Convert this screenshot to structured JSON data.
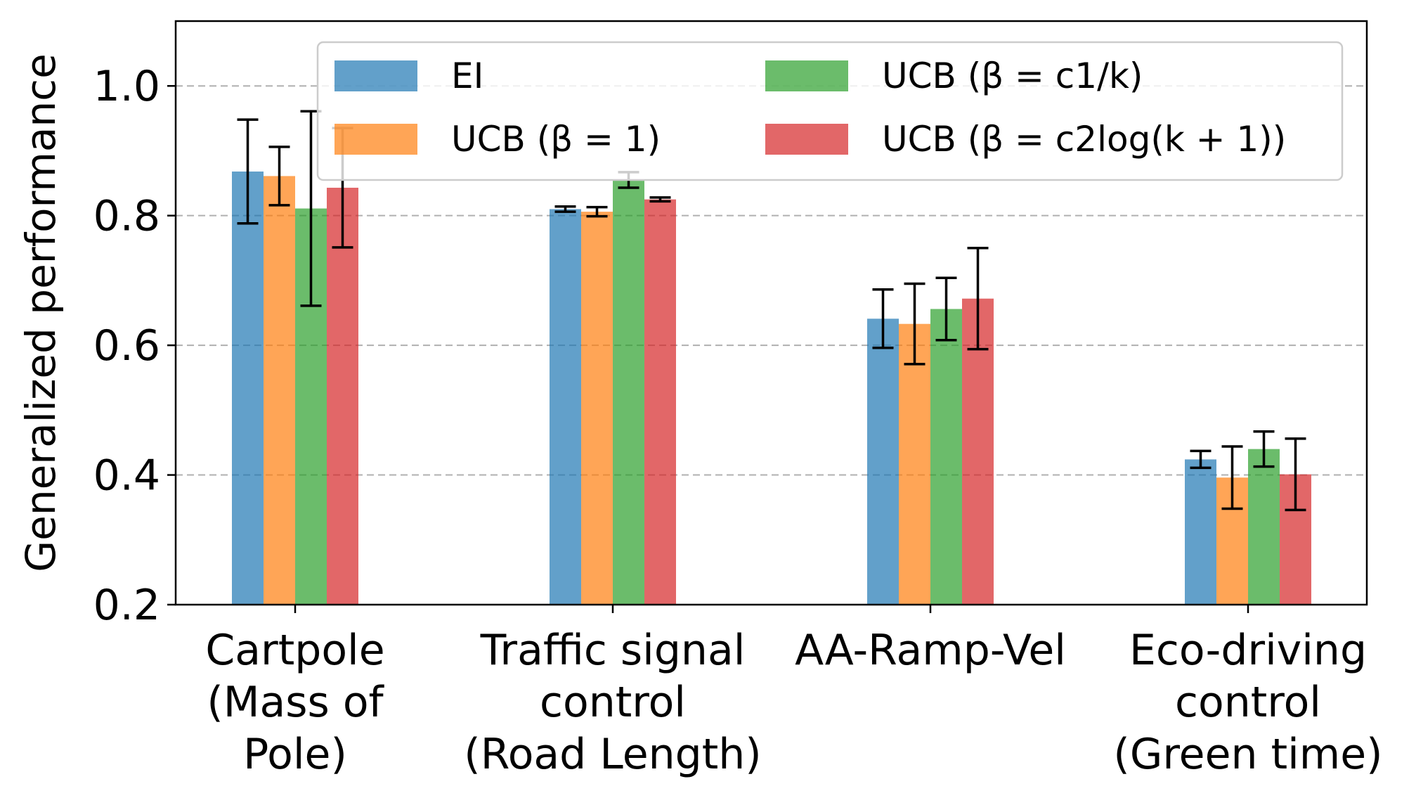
{
  "chart_data": {
    "type": "bar",
    "title": "",
    "xlabel": "",
    "ylabel": "Generalized performance",
    "ylim": [
      0.2,
      1.1
    ],
    "yticks": [
      "0.2",
      "0.4",
      "0.6",
      "0.8",
      "1.0"
    ],
    "grid": "y-dashed",
    "legend_position": "top-right",
    "categories": [
      [
        "Cartpole",
        "(Mass of",
        "Pole)"
      ],
      [
        "Traffic signal",
        "control",
        "(Road Length)"
      ],
      [
        "AA-Ramp-Vel"
      ],
      [
        "Eco-driving",
        "control",
        "(Green time)"
      ]
    ],
    "series": [
      {
        "name": "EI",
        "color": "#1f77b4",
        "values": [
          0.868,
          0.81,
          0.641,
          0.424
        ],
        "errors": [
          0.08,
          0.004,
          0.045,
          0.013
        ]
      },
      {
        "name": "UCB (β = 1)",
        "color": "#ff7f0e",
        "values": [
          0.861,
          0.806,
          0.633,
          0.396
        ],
        "errors": [
          0.045,
          0.007,
          0.062,
          0.048
        ]
      },
      {
        "name": "UCB (β = c1/k)",
        "color": "#2ca02c",
        "values": [
          0.811,
          0.855,
          0.656,
          0.44
        ],
        "errors": [
          0.15,
          0.012,
          0.048,
          0.027
        ]
      },
      {
        "name": "UCB (β = c2log(k + 1))",
        "color": "#d62728",
        "values": [
          0.843,
          0.825,
          0.672,
          0.401
        ],
        "errors": [
          0.092,
          0.003,
          0.078,
          0.055
        ]
      }
    ]
  }
}
